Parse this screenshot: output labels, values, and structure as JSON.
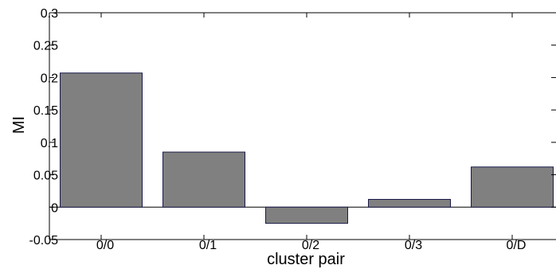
{
  "chart_data": {
    "type": "bar",
    "title": "",
    "xlabel": "cluster pair",
    "ylabel": "MI",
    "categories": [
      "0/0",
      "0/1",
      "0/2",
      "0/3",
      "0/D"
    ],
    "values": [
      0.207,
      0.085,
      -0.025,
      0.012,
      0.062
    ],
    "ylim": [
      -0.05,
      0.3
    ],
    "yticks": [
      -0.05,
      0,
      0.05,
      0.1,
      0.15,
      0.2,
      0.25,
      0.3
    ],
    "ytick_labels": [
      "-0.05",
      "0",
      "0.05",
      "0.1",
      "0.15",
      "0.2",
      "0.25",
      "0.3"
    ],
    "grid": false,
    "bar_color": "#808080",
    "bar_edge_color": "#1a1a4a"
  }
}
